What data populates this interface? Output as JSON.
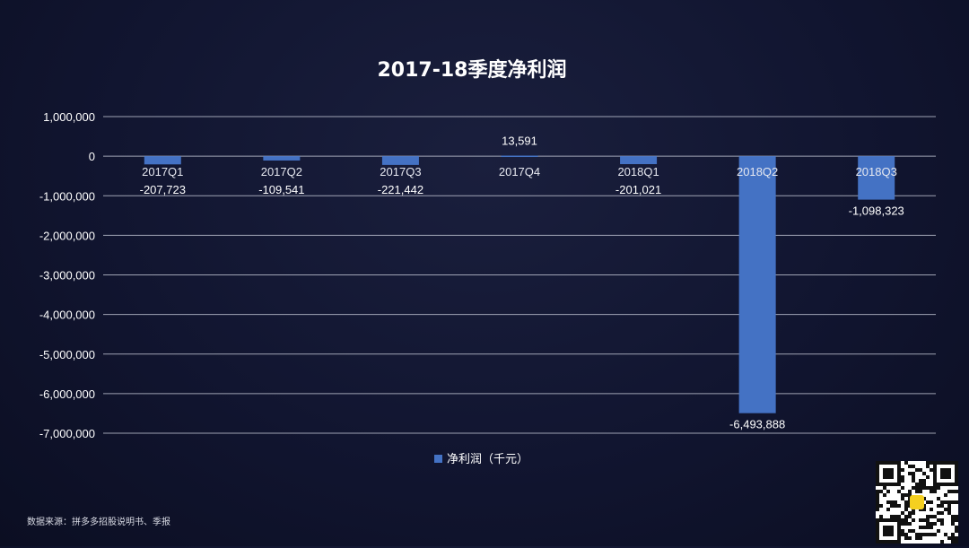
{
  "chart_data": {
    "type": "bar",
    "title": "2017-18季度净利润",
    "categories": [
      "2017Q1",
      "2017Q2",
      "2017Q3",
      "2017Q4",
      "2018Q1",
      "2018Q2",
      "2018Q3"
    ],
    "series": [
      {
        "name": "净利润（千元）",
        "values": [
          -207723,
          -109541,
          -221442,
          13591,
          -201021,
          -6493888,
          -1098323
        ],
        "labels": [
          "-207,723",
          "-109,541",
          "-221,442",
          "13,591",
          "-201,021",
          "-6,493,888",
          "-1,098,323"
        ]
      }
    ],
    "ylim": [
      -7000000,
      1000000
    ],
    "yticks": [
      1000000,
      0,
      -1000000,
      -2000000,
      -3000000,
      -4000000,
      -5000000,
      -6000000,
      -7000000
    ],
    "ytick_labels": [
      "1,000,000",
      "0",
      "-1,000,000",
      "-2,000,000",
      "-3,000,000",
      "-4,000,000",
      "-5,000,000",
      "-6,000,000",
      "-7,000,000"
    ],
    "grid": true,
    "legend_position": "bottom",
    "bar_color": "#4472c4",
    "gridline_color": "#cfd3e0"
  },
  "footer": {
    "source": "数据来源：拼多多招股说明书、季报"
  },
  "qr_icon": "qr-code-icon"
}
